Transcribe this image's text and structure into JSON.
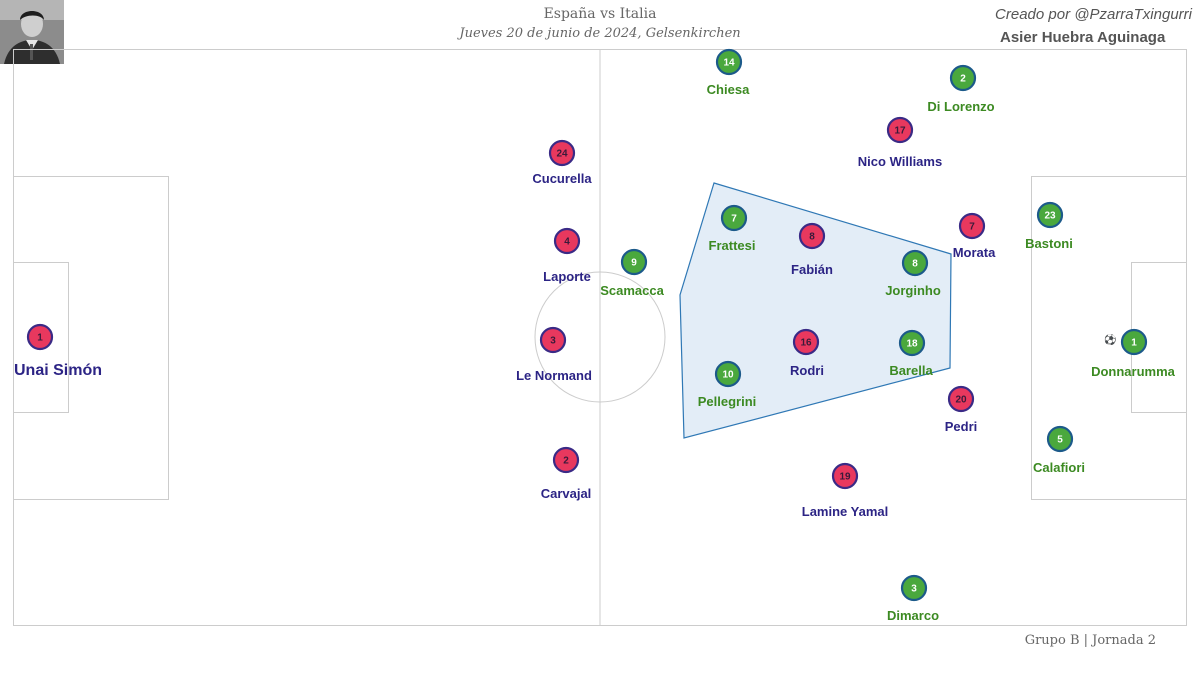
{
  "header": {
    "title": "España vs Italia",
    "subtitle": "Jueves 20 de junio de 2024, Gelsenkirchen",
    "credit": "Creado por @PzarraTxingurri",
    "author": "Asier Huebra Aguinaga"
  },
  "footer": "Grupo B | Jornada 2",
  "colors": {
    "spain_fill": "#e8385e",
    "spain_border": "#3a2a86",
    "spain_text": "#2c2485",
    "italy_fill": "#4aa83d",
    "italy_border": "#1c5a8a",
    "italy_text": "#3c8a22",
    "pitch_lines": "#cccccc",
    "polygon_fill": "#e3edf7",
    "polygon_stroke": "#2f78b5"
  },
  "ball_icon": "soccer-ball-icon",
  "players": [
    {
      "team": "spain",
      "number": "1",
      "name": "Unai Simón",
      "large": true
    },
    {
      "team": "spain",
      "number": "24",
      "name": "Cucurella"
    },
    {
      "team": "spain",
      "number": "4",
      "name": "Laporte"
    },
    {
      "team": "spain",
      "number": "3",
      "name": "Le Normand"
    },
    {
      "team": "spain",
      "number": "2",
      "name": "Carvajal"
    },
    {
      "team": "spain",
      "number": "17",
      "name": "Nico Williams"
    },
    {
      "team": "spain",
      "number": "7",
      "name": "Morata"
    },
    {
      "team": "spain",
      "number": "8",
      "name": "Fabián"
    },
    {
      "team": "spain",
      "number": "16",
      "name": "Rodri"
    },
    {
      "team": "spain",
      "number": "20",
      "name": "Pedri"
    },
    {
      "team": "spain",
      "number": "19",
      "name": "Lamine Yamal"
    },
    {
      "team": "italy",
      "number": "14",
      "name": "Chiesa"
    },
    {
      "team": "italy",
      "number": "2",
      "name": "Di Lorenzo"
    },
    {
      "team": "italy",
      "number": "7",
      "name": "Frattesi"
    },
    {
      "team": "italy",
      "number": "9",
      "name": "Scamacca"
    },
    {
      "team": "italy",
      "number": "8",
      "name": "Jorginho"
    },
    {
      "team": "italy",
      "number": "23",
      "name": "Bastoni"
    },
    {
      "team": "italy",
      "number": "18",
      "name": "Barella"
    },
    {
      "team": "italy",
      "number": "10",
      "name": "Pellegrini"
    },
    {
      "team": "italy",
      "number": "1",
      "name": "Donnarumma"
    },
    {
      "team": "italy",
      "number": "5",
      "name": "Calafiori"
    },
    {
      "team": "italy",
      "number": "3",
      "name": "Dimarco"
    }
  ]
}
